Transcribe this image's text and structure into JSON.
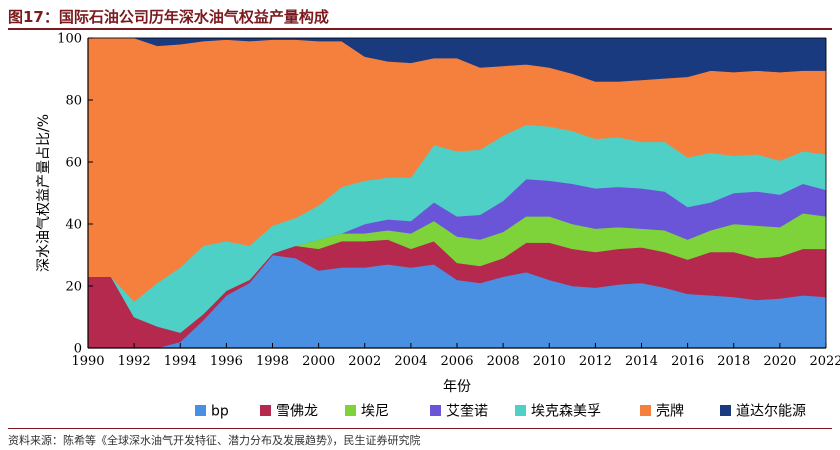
{
  "header": {
    "title": "图17：国际石油公司历年深水油气权益产量构成"
  },
  "footer": {
    "source": "资料来源：陈希等《全球深水油气开发特征、潜力分布及发展趋势》，民生证券研究院"
  },
  "chart_data": {
    "type": "area",
    "stacked": true,
    "xlabel": "年份",
    "ylabel": "深水油气权益产量占比/%",
    "ylim": [
      0,
      100
    ],
    "xlim": [
      1990,
      2022
    ],
    "yticks": [
      0,
      20,
      40,
      60,
      80,
      100
    ],
    "xticks": [
      1990,
      1992,
      1994,
      1996,
      1998,
      2000,
      2002,
      2004,
      2006,
      2008,
      2010,
      2012,
      2014,
      2016,
      2018,
      2020,
      2022
    ],
    "legend_position": "bottom",
    "x": [
      1990,
      1991,
      1992,
      1993,
      1994,
      1995,
      1996,
      1997,
      1998,
      1999,
      2000,
      2001,
      2002,
      2003,
      2004,
      2005,
      2006,
      2007,
      2008,
      2009,
      2010,
      2011,
      2012,
      2013,
      2014,
      2015,
      2016,
      2017,
      2018,
      2019,
      2020,
      2021,
      2022
    ],
    "series": [
      {
        "name": "bp",
        "color": "#4a90e2",
        "values": [
          0,
          0,
          0,
          0,
          2,
          9,
          17,
          21,
          30,
          29,
          25,
          26,
          26,
          27,
          26,
          27,
          22,
          21,
          23,
          24.5,
          22,
          20,
          19.5,
          20.5,
          21,
          19.5,
          17.5,
          17,
          16.5,
          15.5,
          16,
          17,
          16.5
        ]
      },
      {
        "name": "雪佛龙",
        "color": "#b5294f",
        "values": [
          23,
          23,
          10,
          7,
          3,
          2,
          1.5,
          1,
          0.5,
          4,
          7,
          8.5,
          8.5,
          8,
          6,
          7.5,
          5.5,
          5.5,
          6,
          9.5,
          12,
          12,
          11.5,
          11.5,
          11.5,
          11.5,
          11,
          14,
          14.5,
          13.5,
          13.5,
          15,
          15.5
        ]
      },
      {
        "name": "埃尼",
        "color": "#7ed33a",
        "values": [
          0,
          0,
          0,
          0,
          0,
          0,
          0,
          0,
          0,
          0,
          3,
          2.5,
          2.5,
          3,
          5,
          6.5,
          8.5,
          8.5,
          8.5,
          8.5,
          8.5,
          8,
          7.5,
          7,
          6,
          7,
          6.5,
          7,
          9,
          10.5,
          9.5,
          11.5,
          10.5
        ]
      },
      {
        "name": "艾奎诺",
        "color": "#6a55d9",
        "values": [
          0,
          0,
          0,
          0,
          0,
          0,
          0,
          0,
          0,
          0,
          0,
          0,
          3,
          3.5,
          4,
          6,
          6.5,
          8,
          10,
          12,
          11.5,
          13,
          13,
          13,
          13,
          12.5,
          10.5,
          9,
          10,
          11,
          10.5,
          9.5,
          8.5
        ]
      },
      {
        "name": "埃克森美孚",
        "color": "#4fd0c6",
        "values": [
          0,
          0,
          5,
          14,
          21,
          22,
          16,
          11,
          9,
          9,
          11,
          15,
          14,
          13.5,
          14,
          18.5,
          21,
          21,
          21,
          17.5,
          17.5,
          17,
          16,
          16,
          15,
          16,
          16,
          16,
          12,
          12,
          11,
          10.5,
          11.5
        ]
      },
      {
        "name": "壳牌",
        "color": "#f5803e",
        "values": [
          77,
          77,
          85,
          76.5,
          72,
          66,
          65,
          66,
          60,
          57.5,
          53,
          47,
          40,
          37.5,
          37,
          28,
          30,
          26.5,
          22.5,
          19.5,
          19,
          18.5,
          18.5,
          18,
          20,
          20.5,
          26,
          26.5,
          27,
          27,
          28.5,
          26,
          27
        ]
      },
      {
        "name": "道达尔能源",
        "color": "#1a3a80",
        "values": [
          0,
          0,
          0,
          2.5,
          2,
          1,
          0.5,
          1,
          0.5,
          0.5,
          1,
          1,
          6,
          7.5,
          8,
          6.5,
          6.5,
          9.5,
          9,
          8.5,
          9.5,
          11.5,
          14,
          14,
          13.5,
          13,
          12.5,
          10.5,
          11,
          10.5,
          11,
          10.5,
          10.5
        ]
      }
    ]
  }
}
